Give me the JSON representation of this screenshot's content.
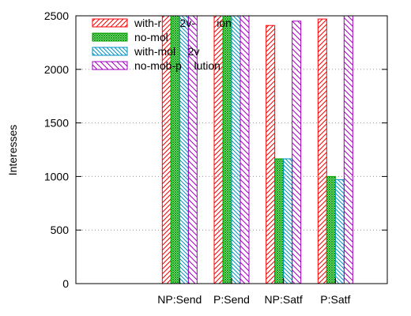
{
  "chart_data": {
    "type": "bar",
    "title": "",
    "xlabel": "",
    "ylabel": "Interesses",
    "ylim": [
      0,
      2500
    ],
    "yticks": [
      0,
      500,
      1000,
      1500,
      2000,
      2500
    ],
    "grid": "horizontal dotted",
    "legend_position": "top-left",
    "categories": [
      "NP:Send",
      "P:Send",
      "NP:Satf",
      "P:Satf"
    ],
    "series": [
      {
        "name": "with-mob-v2v-pollution",
        "legend_label_visible": "with-r      2v-       ion",
        "color": "#ff0000",
        "pattern": "diag-right",
        "values": [
          2500,
          2500,
          2410,
          2470
        ]
      },
      {
        "name": "no-mob",
        "legend_label_visible": "no-mol",
        "color": "#00a000",
        "pattern": "crosshatch",
        "values": [
          2500,
          2500,
          1165,
          1000
        ]
      },
      {
        "name": "with-mob-v2v",
        "legend_label_visible": "with-mol    2v",
        "color": "#0090c0",
        "pattern": "diag-left",
        "values": [
          2500,
          2500,
          1165,
          970
        ]
      },
      {
        "name": "no-mob-pollution",
        "legend_label_visible": "no-mob-p    lution",
        "color": "#a000c0",
        "pattern": "diag-left-wide",
        "values": [
          2500,
          2500,
          2450,
          2500
        ]
      }
    ]
  }
}
